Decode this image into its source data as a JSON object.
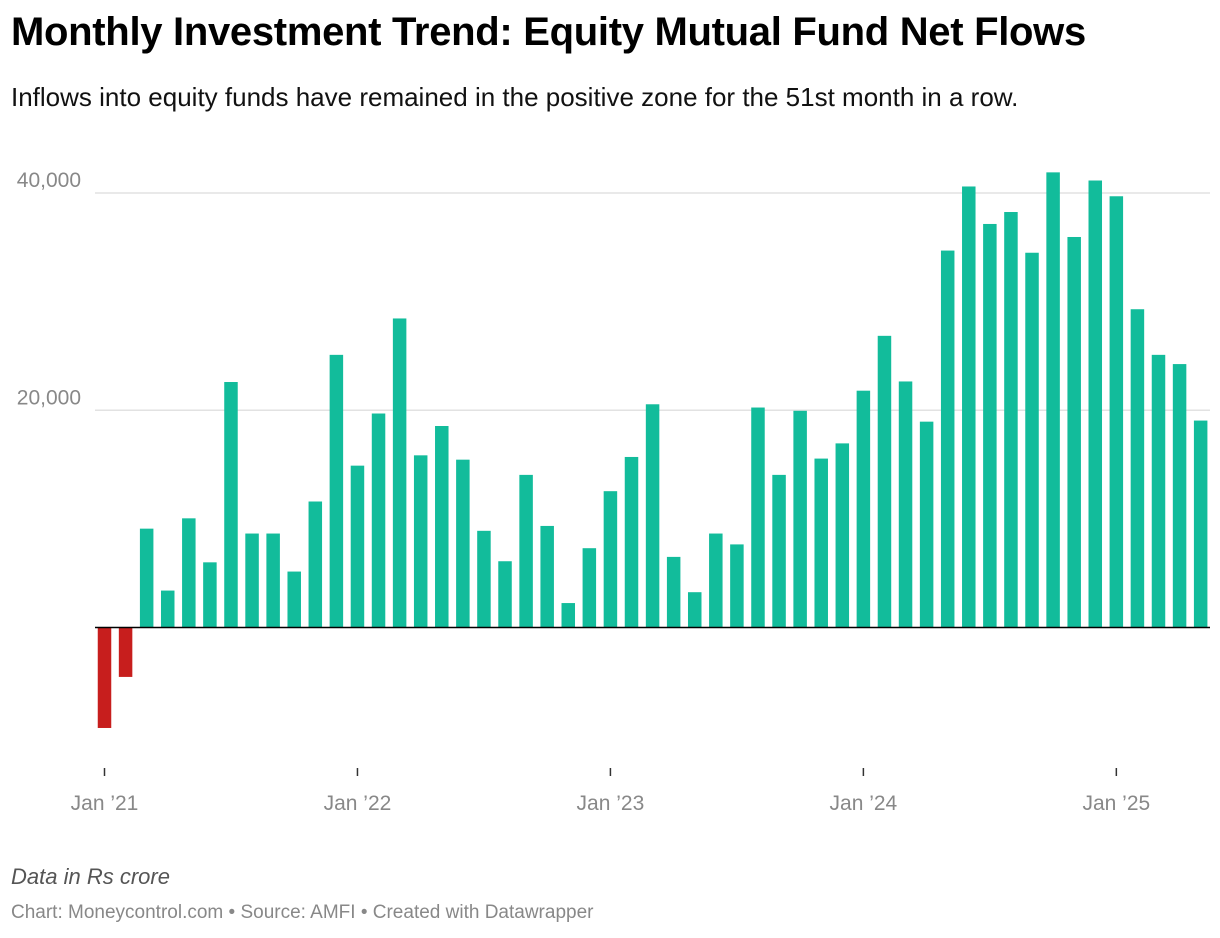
{
  "header": {
    "title": "Monthly Investment Trend: Equity Mutual Fund Net Flows",
    "subtitle": "Inflows into equity funds have remained in the positive zone for the 51st month in a row."
  },
  "footer": {
    "note": "Data in Rs crore",
    "credits": "Chart: Moneycontrol.com • Source: AMFI • Created with Datawrapper"
  },
  "colors": {
    "positive": "#12bc9b",
    "negative": "#c71e1d",
    "grid": "#e2e2e2",
    "axis_text": "#888888"
  },
  "chart_data": {
    "type": "bar",
    "title": "Monthly Investment Trend: Equity Mutual Fund Net Flows",
    "subtitle": "Inflows into equity funds have remained in the positive zone for the 51st month in a row.",
    "xlabel": "",
    "ylabel": "",
    "ylim": [
      -12000,
      42000
    ],
    "y_gridlines": [
      20000,
      40000
    ],
    "y_tick_labels": [
      "20,000",
      "40,000"
    ],
    "x_tick_labels": [
      "Jan ’21",
      "Jan ’22",
      "Jan ’23",
      "Jan ’24",
      "Jan ’25"
    ],
    "x_tick_index": [
      0,
      12,
      24,
      36,
      48
    ],
    "grid": true,
    "legend": "none",
    "series": [
      {
        "categories": [
          "2021-01",
          "2021-02",
          "2021-03",
          "2021-04",
          "2021-05",
          "2021-06",
          "2021-07",
          "2021-08",
          "2021-09",
          "2021-10",
          "2021-11",
          "2021-12",
          "2022-01",
          "2022-02",
          "2022-03",
          "2022-04",
          "2022-05",
          "2022-06",
          "2022-07",
          "2022-08",
          "2022-09",
          "2022-10",
          "2022-11",
          "2022-12",
          "2023-01",
          "2023-02",
          "2023-03",
          "2023-04",
          "2023-05",
          "2023-06",
          "2023-07",
          "2023-08",
          "2023-09",
          "2023-10",
          "2023-11",
          "2023-12",
          "2024-01",
          "2024-02",
          "2024-03",
          "2024-04",
          "2024-05",
          "2024-06",
          "2024-07",
          "2024-08",
          "2024-09",
          "2024-10",
          "2024-11",
          "2024-12",
          "2025-01",
          "2025-02",
          "2025-03",
          "2025-04",
          "2025-05"
        ],
        "values": [
          -9250,
          -4550,
          9100,
          3400,
          10050,
          6000,
          22600,
          8650,
          8650,
          5150,
          11600,
          25100,
          14900,
          19700,
          28450,
          15850,
          18550,
          15450,
          8900,
          6100,
          14050,
          9350,
          2250,
          7300,
          12550,
          15700,
          20550,
          6500,
          3250,
          8650,
          7650,
          20250,
          14050,
          19950,
          15550,
          16950,
          21800,
          26850,
          22650,
          18950,
          34700,
          40600,
          37150,
          38250,
          34500,
          41900,
          35950,
          41150,
          39700,
          29300,
          25100,
          24250,
          19050
        ]
      }
    ]
  }
}
